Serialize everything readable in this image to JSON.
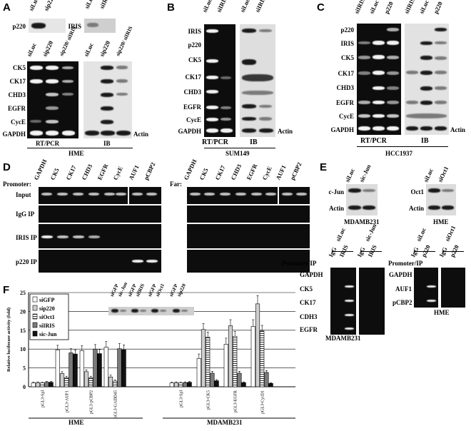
{
  "panels": {
    "A": {
      "label": "A",
      "top_lanes_left": [
        "siLuc",
        "sip220"
      ],
      "top_lanes_right": [
        "siLuc",
        "siIRIS"
      ],
      "top_row_left": "p220",
      "top_row_right": "IRIS",
      "lanes_left": [
        "siLuc",
        "sip220",
        "sip220/ siIRIS"
      ],
      "lanes_right": [
        "siLuc",
        "sip220",
        "sip220/ siIRIS"
      ],
      "rows": [
        "CK5",
        "CK17",
        "CHD3",
        "EGFR",
        "CycE",
        "GAPDH"
      ],
      "right_end_label": "Actin",
      "method_left": "RT/PCR",
      "method_right": "IB",
      "cell_line": "HME"
    },
    "B": {
      "label": "B",
      "lanes_left": [
        "siLuc",
        "siIRIS"
      ],
      "lanes_right": [
        "siLuc",
        "siIRIS"
      ],
      "rows": [
        "IRIS",
        "p220",
        "CK5",
        "CK17",
        "CHD3",
        "EGFR",
        "CycE",
        "GAPDH"
      ],
      "right_end_label": "Actin",
      "method_left": "RT/PCR",
      "method_right": "IB",
      "cell_line": "SUM149"
    },
    "C": {
      "label": "C",
      "lanes_left": [
        "siIRIS",
        "siLuc",
        "p220"
      ],
      "lanes_right": [
        "siIRIS",
        "siLuc",
        "p220"
      ],
      "rows": [
        "p220",
        "IRIS",
        "CK5",
        "CK17",
        "CHD3",
        "EGFR",
        "CycE",
        "GAPDH"
      ],
      "right_end_label": "Actin",
      "method_left": "RT/PCR",
      "method_right": "IB",
      "cell_line": "HCC1937"
    },
    "D": {
      "label": "D",
      "promoter_label": "Promoter:",
      "far_label": "Far:",
      "lanes": [
        "GAPDH",
        "CK5",
        "CK17",
        "CHD3",
        "EGFR",
        "CycE",
        "AUF1",
        "pCBP2"
      ],
      "rows": [
        "Input",
        "IgG IP",
        "IRIS IP",
        "p220 IP"
      ]
    },
    "E": {
      "label": "E",
      "cjun_lanes": [
        "siLuc",
        "sic-Jun"
      ],
      "cjun_rows": [
        "c-Jun",
        "Actin"
      ],
      "cjun_cell": "MDAMB231",
      "oct1_lanes": [
        "siLuc",
        "siOct1"
      ],
      "oct1_rows": [
        "Oct1",
        "Actin"
      ],
      "oct1_cell": "HME",
      "chip_left_groups": [
        "siLuc",
        "sic-Jun"
      ],
      "chip_left_lanes": [
        "IgG",
        "IRIS",
        "IgG",
        "IRIS"
      ],
      "chip_left_header": "Promoter/IP",
      "chip_left_rows": [
        "GAPDH",
        "CK5",
        "CK17",
        "CDH3",
        "EGFR"
      ],
      "chip_left_cell": "MDAMB231",
      "chip_right_groups": [
        "siLuc",
        "siOct1"
      ],
      "chip_right_lanes": [
        "IgG",
        "p220",
        "IgG",
        "p220"
      ],
      "chip_right_header": "Promoter/IP",
      "chip_right_rows": [
        "GAPDH",
        "AUF1",
        "pCBP2"
      ],
      "chip_right_cell": "HME"
    },
    "F": {
      "label": "F",
      "inset_lanes": [
        "siGFP",
        "sic-Jun",
        "siGFP",
        "siIRIS",
        "siGFP",
        "siOct1",
        "siGFP",
        "sip220"
      ],
      "group_hme": "HME",
      "group_mda": "MDAMB231"
    }
  },
  "chart_data": {
    "type": "bar",
    "ylabel": "Relative luciferase activity (fold)",
    "ylim": [
      0,
      25
    ],
    "yticks": [
      0,
      5,
      10,
      15,
      20,
      25
    ],
    "grid": true,
    "legend_position": "top-left",
    "categories": [
      "pGL3-Spl",
      "pGL3-AUF1",
      "pGL3-pCBP2",
      "pGL3-GADD45",
      "pGL3-Spl",
      "pGL3-CK5",
      "pGL3-EGFR",
      "pGL3-CycD1"
    ],
    "category_groups": [
      "HME",
      "HME",
      "HME",
      "HME",
      "MDAMB231",
      "MDAMB231",
      "MDAMB231",
      "MDAMB231"
    ],
    "series": [
      {
        "name": "siGFP",
        "values": [
          1.0,
          9.8,
          9.6,
          10.5,
          1.0,
          7.5,
          11.3,
          16.0
        ],
        "errors": [
          0.2,
          1.2,
          1.3,
          1.5,
          0.2,
          1.2,
          1.6,
          1.8
        ]
      },
      {
        "name": "sip220",
        "values": [
          1.1,
          3.5,
          4.0,
          2.6,
          1.1,
          15.2,
          16.2,
          22.0
        ],
        "errors": [
          0.2,
          0.5,
          0.5,
          0.5,
          0.2,
          1.6,
          1.6,
          2.2
        ]
      },
      {
        "name": "siOct1",
        "values": [
          1.0,
          2.4,
          2.4,
          1.5,
          1.0,
          13.2,
          13.4,
          14.8
        ],
        "errors": [
          0.2,
          0.4,
          0.4,
          0.3,
          0.2,
          1.3,
          1.3,
          1.5
        ]
      },
      {
        "name": "siIRIS",
        "values": [
          1.2,
          9.0,
          10.0,
          10.1,
          1.1,
          3.6,
          3.6,
          3.8
        ],
        "errors": [
          0.2,
          1.1,
          1.2,
          1.4,
          0.2,
          0.5,
          0.5,
          0.5
        ]
      },
      {
        "name": "sic-Jun",
        "values": [
          1.2,
          8.7,
          8.8,
          9.8,
          1.2,
          1.6,
          1.1,
          0.9
        ],
        "errors": [
          0.2,
          1.1,
          1.1,
          1.3,
          0.2,
          0.3,
          0.2,
          0.2
        ]
      }
    ],
    "series_fills": [
      "#ffffff",
      "#cfcfcf",
      "hatch",
      "#7a7a7a",
      "#111111"
    ]
  }
}
